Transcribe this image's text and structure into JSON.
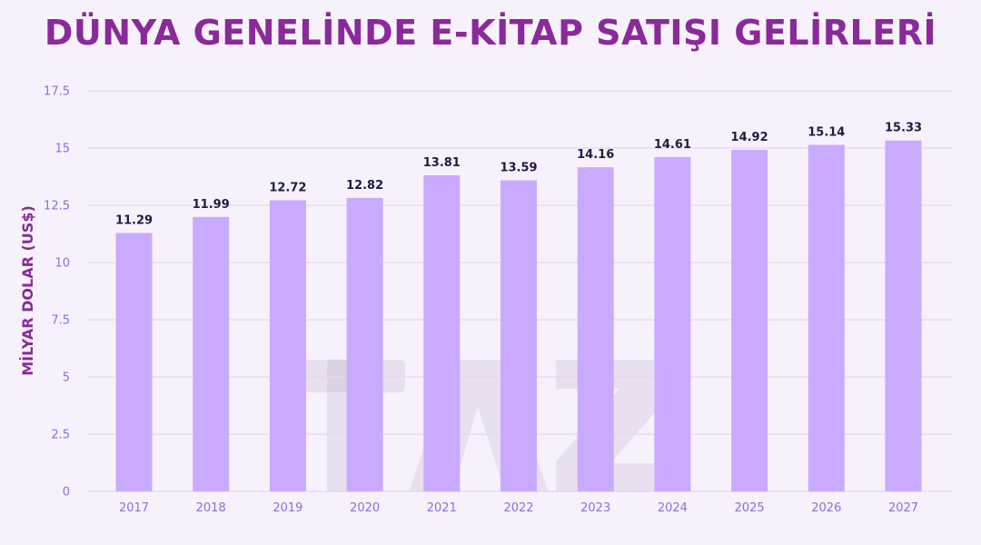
{
  "chart_data": {
    "type": "bar",
    "title": "DÜNYA GENELİNDE E-KİTAP SATIŞI GELİRLERİ",
    "ylabel": "MİLYAR DOLAR (US$)",
    "xlabel": "",
    "categories": [
      "2017",
      "2018",
      "2019",
      "2020",
      "2021",
      "2022",
      "2023",
      "2024",
      "2025",
      "2026",
      "2027"
    ],
    "values": [
      11.29,
      11.99,
      12.72,
      12.82,
      13.81,
      13.59,
      14.16,
      14.61,
      14.92,
      15.14,
      15.33
    ],
    "value_labels": [
      "11.29",
      "11.99",
      "12.72",
      "12.82",
      "13.81",
      "13.59",
      "14.16",
      "14.61",
      "14.92",
      "15.14",
      "15.33"
    ],
    "ylim": [
      0,
      17.5
    ],
    "yticks": [
      0,
      2.5,
      5,
      7.5,
      10,
      12.5,
      15,
      17.5
    ],
    "ytick_labels": [
      "0",
      "2.5",
      "5",
      "7.5",
      "10",
      "12.5",
      "15",
      "17.5"
    ],
    "grid": true,
    "legend": "none",
    "colors": {
      "bar": "#c9aaff",
      "title": "#8a2a9a",
      "tick": "#8a70d8",
      "grid": "#e3d8f3",
      "background": "#f7f1fc"
    }
  }
}
